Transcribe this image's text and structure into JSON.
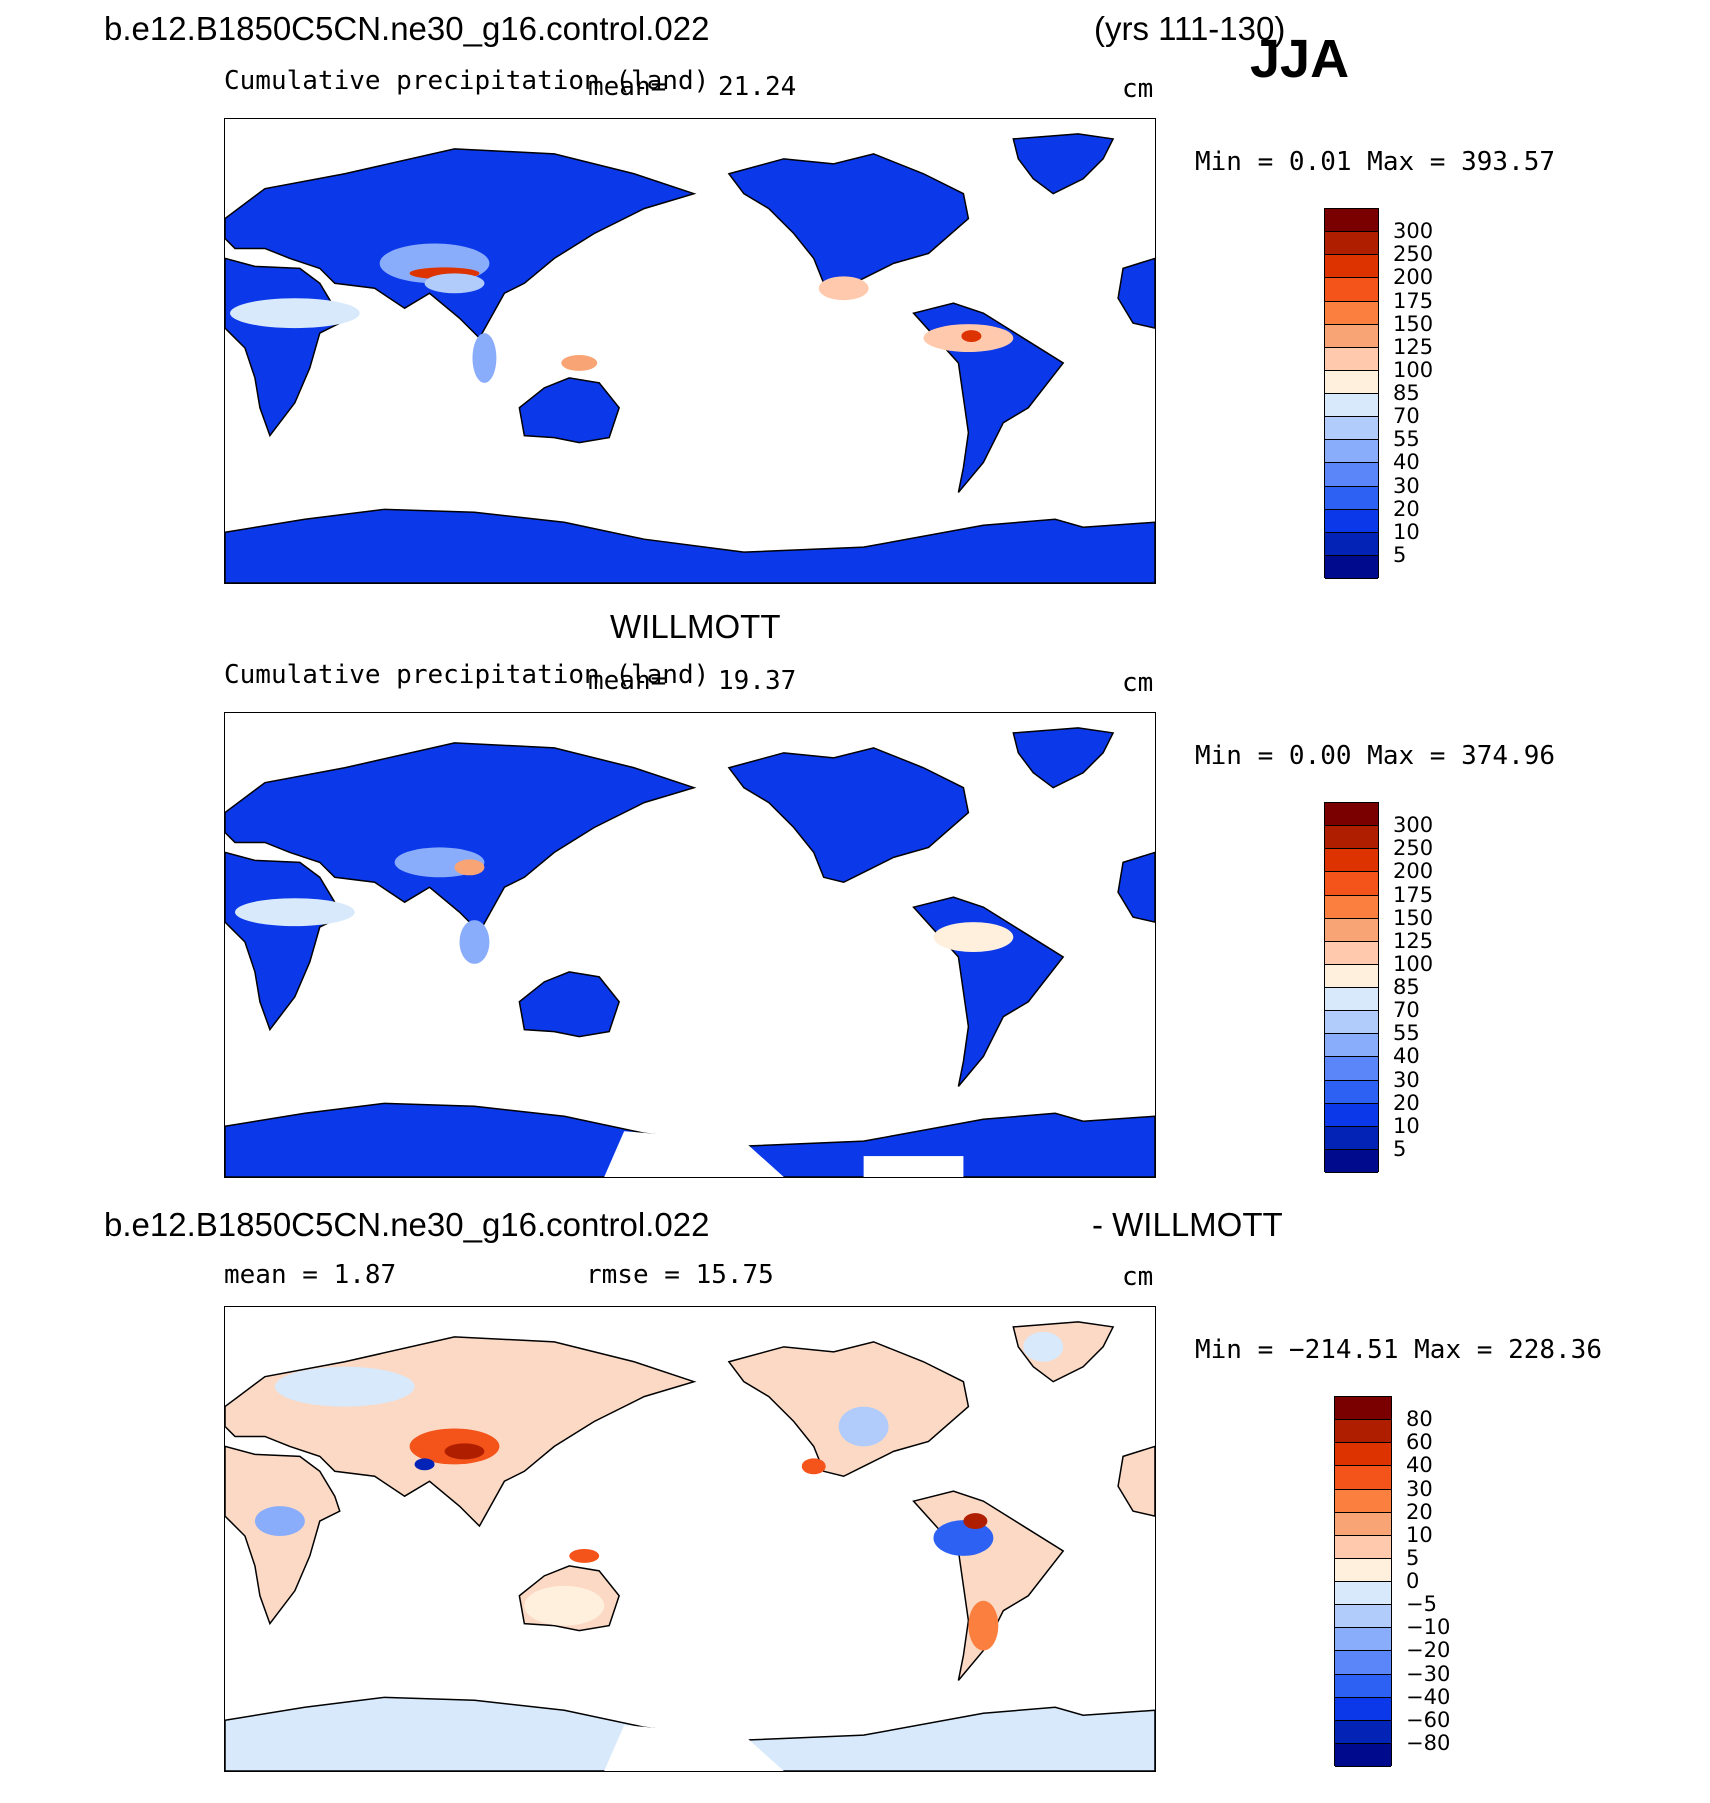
{
  "header": {
    "case_name": "b.e12.B1850C5CN.ne30_g16.control.022",
    "years": "(yrs 111-130)",
    "season": "JJA"
  },
  "panels": [
    {
      "id": "model",
      "variable": "Cumulative precipitation (land)",
      "mean_label": "mean=",
      "mean_value": "21.24",
      "units": "cm",
      "stats": "Min  =    0.01  Max  =  393.57"
    },
    {
      "id": "obs",
      "title": "WILLMOTT",
      "variable": "Cumulative precipitation (land)",
      "mean_label": "mean=",
      "mean_value": "19.37",
      "units": "cm",
      "stats": "Min  =    0.00  Max  =  374.96"
    },
    {
      "id": "diff",
      "case_name": "b.e12.B1850C5CN.ne30_g16.control.022",
      "minus_title": "- WILLMOTT",
      "mean_text": "mean  =    1.87",
      "rmse_text": "rmse  =   15.75",
      "units": "cm",
      "stats": "Min  = −214.51  Max  =  228.36"
    }
  ],
  "colorbars": {
    "precip": {
      "labels": [
        "300",
        "250",
        "200",
        "175",
        "150",
        "125",
        "100",
        "85",
        "70",
        "55",
        "40",
        "30",
        "20",
        "10",
        "5"
      ],
      "colors": [
        "#7a0000",
        "#b01e00",
        "#dd3300",
        "#f4531a",
        "#fb8040",
        "#f9a475",
        "#ffc9ad",
        "#fff0de",
        "#d7e9fb",
        "#b1ccfa",
        "#8aadfb",
        "#5b86fa",
        "#2d61f3",
        "#0b38e8",
        "#0322b6",
        "#000a8c"
      ]
    },
    "diff": {
      "labels": [
        "80",
        "60",
        "40",
        "30",
        "20",
        "10",
        "5",
        "0",
        "−5",
        "−10",
        "−20",
        "−30",
        "−40",
        "−60",
        "−80"
      ],
      "colors": [
        "#7a0000",
        "#b01e00",
        "#dd3300",
        "#f4531a",
        "#fb8040",
        "#f9a475",
        "#ffc9ad",
        "#fff0de",
        "#d7e9fb",
        "#b1ccfa",
        "#8aadfb",
        "#5b86fa",
        "#2d61f3",
        "#0b38e8",
        "#0322b6",
        "#000a8c"
      ]
    }
  }
}
